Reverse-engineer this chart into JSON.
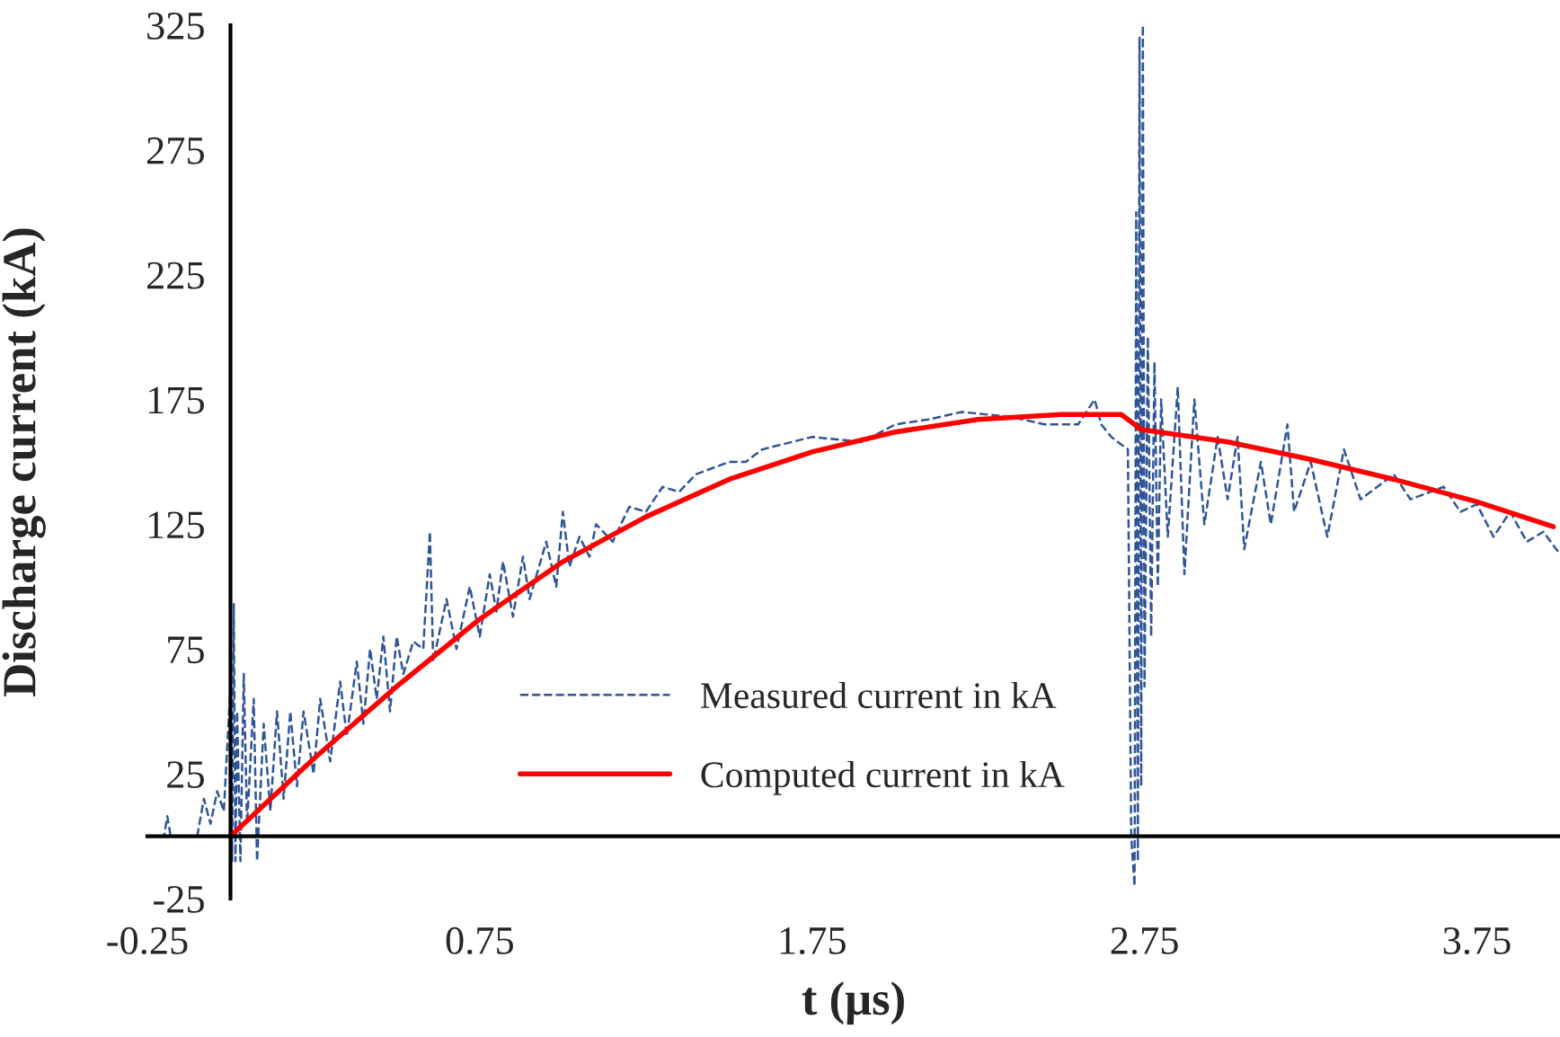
{
  "chart_data": {
    "type": "line",
    "xlabel": "t (μs)",
    "ylabel": "Discharge current (kA)",
    "xlim": [
      -0.25,
      4.0
    ],
    "xticks": [
      -0.25,
      0.75,
      1.75,
      2.75,
      3.75
    ],
    "ylim": [
      -25,
      325
    ],
    "yticks": [
      -25,
      25,
      75,
      125,
      175,
      225,
      275,
      325
    ],
    "grid": false,
    "legend": "bottom",
    "marker": "none",
    "series": [
      {
        "name": "Measured current in kA",
        "color": "#2f5597",
        "line_style": "dashed",
        "x": [
          -0.25,
          -0.2,
          -0.19,
          -0.18,
          -0.1,
          -0.08,
          -0.06,
          -0.04,
          -0.02,
          0.0,
          0.005,
          0.01,
          0.015,
          0.02,
          0.03,
          0.04,
          0.05,
          0.07,
          0.08,
          0.1,
          0.12,
          0.14,
          0.16,
          0.18,
          0.2,
          0.22,
          0.25,
          0.27,
          0.3,
          0.33,
          0.35,
          0.38,
          0.4,
          0.42,
          0.44,
          0.46,
          0.48,
          0.5,
          0.52,
          0.55,
          0.58,
          0.6,
          0.61,
          0.65,
          0.68,
          0.72,
          0.75,
          0.78,
          0.8,
          0.82,
          0.85,
          0.88,
          0.9,
          0.95,
          0.98,
          1.0,
          1.02,
          1.05,
          1.08,
          1.1,
          1.15,
          1.2,
          1.25,
          1.3,
          1.35,
          1.4,
          1.5,
          1.55,
          1.6,
          1.75,
          1.9,
          2.0,
          2.1,
          2.2,
          2.35,
          2.45,
          2.55,
          2.6,
          2.62,
          2.65,
          2.7,
          2.71,
          2.72,
          2.725,
          2.73,
          2.735,
          2.74,
          2.745,
          2.75,
          2.76,
          2.77,
          2.78,
          2.79,
          2.8,
          2.82,
          2.85,
          2.87,
          2.9,
          2.93,
          2.97,
          3.0,
          3.03,
          3.05,
          3.1,
          3.13,
          3.18,
          3.2,
          3.25,
          3.3,
          3.35,
          3.4,
          3.5,
          3.55,
          3.65,
          3.7,
          3.75,
          3.8,
          3.85,
          3.9,
          3.95,
          4.0
        ],
        "values": [
          0,
          0,
          8,
          0,
          0,
          15,
          5,
          18,
          10,
          60,
          -10,
          93,
          -10,
          50,
          -10,
          65,
          5,
          55,
          -10,
          45,
          10,
          50,
          15,
          50,
          20,
          50,
          25,
          55,
          30,
          62,
          40,
          70,
          45,
          75,
          55,
          80,
          50,
          80,
          65,
          78,
          75,
          122,
          70,
          95,
          75,
          100,
          80,
          105,
          90,
          110,
          88,
          112,
          95,
          118,
          100,
          130,
          108,
          120,
          112,
          125,
          118,
          132,
          130,
          140,
          138,
          145,
          150,
          150,
          155,
          160,
          158,
          165,
          167,
          170,
          168,
          165,
          165,
          175,
          165,
          160,
          155,
          0,
          -20,
          250,
          -10,
          320,
          20,
          325,
          60,
          200,
          80,
          190,
          100,
          175,
          120,
          180,
          105,
          175,
          125,
          160,
          135,
          160,
          115,
          150,
          125,
          165,
          130,
          150,
          120,
          155,
          135,
          145,
          135,
          140,
          130,
          133,
          120,
          130,
          118,
          122,
          113
        ]
      },
      {
        "name": "Computed current in kA",
        "color": "#ff0000",
        "line_style": "solid",
        "x": [
          0,
          0.25,
          0.5,
          0.75,
          1.0,
          1.25,
          1.5,
          1.75,
          2.0,
          2.25,
          2.5,
          2.68,
          2.74,
          3.0,
          3.25,
          3.5,
          3.75,
          3.98
        ],
        "values": [
          0,
          31,
          60,
          87,
          110,
          128,
          143,
          154,
          162,
          167,
          169,
          169,
          163,
          158,
          151,
          143,
          134,
          124
        ]
      }
    ]
  }
}
